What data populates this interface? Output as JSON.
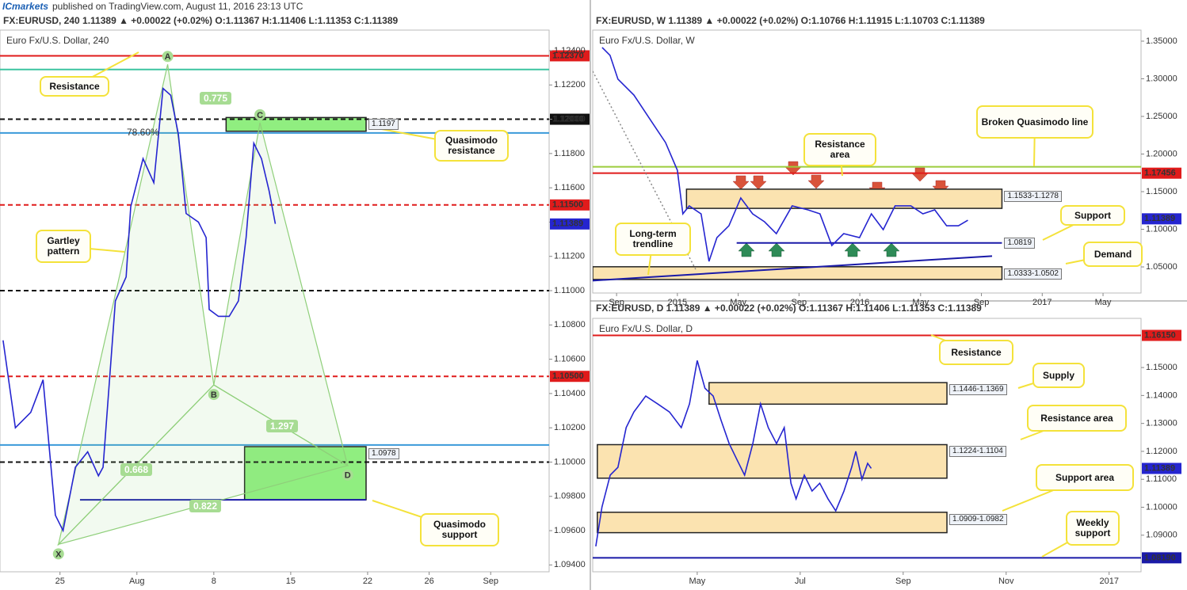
{
  "header": {
    "brand": "ICmarkets",
    "published": "published on TradingView.com, August 11, 2016 23:13 UTC"
  },
  "chart_data": [
    {
      "type": "line",
      "title": "FX:EURUSD, 240  1.11389 ▲ +0.00022 (+0.02%)  O:1.11367  H:1.11406  L:1.11353  C:1.11389",
      "subtitle": "Euro Fx/U.S. Dollar, 240",
      "x": [
        -3.7,
        -2.9,
        -1.9,
        -1.1,
        -0.3,
        0.2,
        1.0,
        1.8,
        2.5,
        2.8,
        3.6,
        4.3,
        4.6,
        5.4,
        6.1,
        6.7,
        7.2,
        7.7,
        8.2,
        9.0,
        9.5,
        9.7,
        10.3,
        11.0,
        11.6,
        12.1,
        12.6,
        13.1,
        13.6,
        14.0
      ],
      "values": [
        1.1071,
        1.102,
        1.1029,
        1.1048,
        1.0969,
        1.096,
        1.0997,
        1.1006,
        1.0992,
        1.0997,
        1.1094,
        1.1108,
        1.1149,
        1.1177,
        1.1163,
        1.1218,
        1.1214,
        1.1191,
        1.1145,
        1.114,
        1.1131,
        1.1089,
        1.1085,
        1.1085,
        1.1094,
        1.1131,
        1.1186,
        1.1177,
        1.1158,
        1.1139
      ],
      "color": "#2525d0",
      "last": 1.11389,
      "xlim": [
        -3.9,
        31.8
      ],
      "ylim": [
        1.0936,
        1.1252
      ],
      "xticks": [
        {
          "value": 0,
          "label": "25"
        },
        {
          "value": 5,
          "label": "Aug"
        },
        {
          "value": 10,
          "label": "8"
        },
        {
          "value": 15,
          "label": "15"
        },
        {
          "value": 20,
          "label": "22"
        },
        {
          "value": 24,
          "label": "26"
        },
        {
          "value": 28,
          "label": "Sep"
        }
      ],
      "yticks": [
        {
          "value": 1.094,
          "label": "1.09400"
        },
        {
          "value": 1.096,
          "label": "1.09600"
        },
        {
          "value": 1.098,
          "label": "1.09800"
        },
        {
          "value": 1.1,
          "label": "1.10000"
        },
        {
          "value": 1.102,
          "label": "1.10200"
        },
        {
          "value": 1.104,
          "label": "1.10400"
        },
        {
          "value": 1.106,
          "label": "1.10600"
        },
        {
          "value": 1.108,
          "label": "1.10800"
        },
        {
          "value": 1.11,
          "label": "1.11000"
        },
        {
          "value": 1.112,
          "label": "1.11200"
        },
        {
          "value": 1.114,
          "label": "1.11400"
        },
        {
          "value": 1.116,
          "label": "1.11600"
        },
        {
          "value": 1.118,
          "label": "1.11800"
        },
        {
          "value": 1.12,
          "label": "1.12000"
        },
        {
          "value": 1.122,
          "label": "1.12200"
        },
        {
          "value": 1.124,
          "label": "1.12400"
        }
      ],
      "levels": [
        {
          "value": 1.1237,
          "color": "#e01b1b",
          "style": "solid",
          "label": "1.12370"
        },
        {
          "value": 1.1229,
          "color": "#3cc4a0",
          "style": "solid"
        },
        {
          "value": 1.12,
          "color": "#111111",
          "style": "dashed",
          "label": "1.12000"
        },
        {
          "value": 1.1192,
          "color": "#3a9ad9",
          "style": "solid",
          "name": "78.60%"
        },
        {
          "value": 1.115,
          "color": "#e01b1b",
          "style": "dashed",
          "label": "1.11500"
        },
        {
          "value": 1.11,
          "color": "#111111",
          "style": "dashed"
        },
        {
          "value": 1.105,
          "color": "#e01b1b",
          "style": "dashed",
          "label": "1.10500"
        },
        {
          "value": 1.101,
          "color": "#3a9ad9",
          "style": "solid"
        },
        {
          "value": 1.1,
          "color": "#111111",
          "style": "dashed"
        },
        {
          "value": 1.0978,
          "color": "#1a1aa8",
          "style": "solid",
          "x_range": [
            1.3,
            19.9
          ]
        }
      ],
      "zones": [
        {
          "low": 1.1193,
          "high": 1.1201,
          "x_range": [
            10.8,
            19.9
          ],
          "color": "#90ee80",
          "tag": "1.1197"
        },
        {
          "low": 1.0978,
          "high": 1.1009,
          "x_range": [
            12,
            19.9
          ],
          "color": "#90ee80",
          "tag": "1.0978"
        }
      ],
      "pattern": [
        {
          "label": "X",
          "x": -0.1,
          "y": 1.0952
        },
        {
          "label": "A",
          "x": 7.0,
          "y": 1.1232
        },
        {
          "label": "B",
          "x": 10.0,
          "y": 1.1045
        },
        {
          "label": "C",
          "x": 13.0,
          "y": 1.1198
        },
        {
          "label": "D",
          "x": 18.7,
          "y": 1.0998
        }
      ],
      "ratios": [
        0.775,
        1.297,
        0.668,
        0.822
      ],
      "annotations": [
        "Resistance",
        "Quasimodo resistance",
        "Gartley pattern",
        "Quasimodo support"
      ]
    },
    {
      "type": "line",
      "title": "FX:EURUSD, W  1.11389 ▲ +0.00022 (+0.02%)  O:1.10766  H:1.11915  L:1.10703  C:1.11389",
      "subtitle": "Euro Fx/U.S. Dollar, W",
      "x": [
        7.05,
        7.57,
        8.09,
        9.14,
        10.18,
        11.22,
        12,
        12.36,
        12.78,
        13.56,
        14.08,
        14.6,
        15.39,
        16.17,
        16.95,
        17.73,
        18.51,
        19.55,
        20.59,
        21.38,
        22.16,
        22.94,
        23.98,
        24.76,
        25.54,
        26.32,
        27.36,
        28.15,
        28.93,
        29.71,
        30.49,
        31.11
      ],
      "values": [
        1.3416,
        1.3311,
        1.2995,
        1.2784,
        1.2468,
        1.2153,
        1.1784,
        1.1205,
        1.1311,
        1.1205,
        1.0574,
        1.0889,
        1.1047,
        1.1416,
        1.1205,
        1.11,
        1.0942,
        1.1311,
        1.1258,
        1.1205,
        1.0784,
        1.0942,
        1.0889,
        1.1205,
        1.0995,
        1.1311,
        1.1311,
        1.1205,
        1.1258,
        1.1047,
        1.1047,
        1.1121
      ],
      "color": "#2525d0",
      "last": 1.11389,
      "xlim": [
        6.43,
        42.5
      ],
      "ylim": [
        1.0153,
        1.3647
      ],
      "xticks": [
        {
          "value": 8,
          "label": "Sep"
        },
        {
          "value": 12,
          "label": "2015"
        },
        {
          "value": 16,
          "label": "May"
        },
        {
          "value": 20,
          "label": "Sep"
        },
        {
          "value": 24,
          "label": "2016"
        },
        {
          "value": 28,
          "label": "May"
        },
        {
          "value": 32,
          "label": "Sep"
        },
        {
          "value": 36,
          "label": "2017"
        },
        {
          "value": 40,
          "label": "May"
        }
      ],
      "yticks": [
        {
          "value": 1.05,
          "label": "1.05000"
        },
        {
          "value": 1.1,
          "label": "1.10000"
        },
        {
          "value": 1.15,
          "label": "1.15000"
        },
        {
          "value": 1.2,
          "label": "1.20000"
        },
        {
          "value": 1.25,
          "label": "1.25000"
        },
        {
          "value": 1.3,
          "label": "1.30000"
        },
        {
          "value": 1.35,
          "label": "1.35000"
        }
      ],
      "levels": [
        {
          "value": 1.183,
          "color": "#9ccc3c",
          "style": "solid"
        },
        {
          "value": 1.17456,
          "color": "#e01b1b",
          "style": "solid",
          "label": "1.17456"
        },
        {
          "value": 1.0819,
          "color": "#1a1aa8",
          "style": "solid",
          "x_range": [
            15.9,
            33.35
          ],
          "tag": "1.0819"
        }
      ],
      "zones": [
        {
          "low": 1.1278,
          "high": 1.1533,
          "x_range": [
            12.6,
            33.35
          ],
          "color": "#fbe3b0",
          "tag": "1.1533-1.1278"
        },
        {
          "low": 1.0333,
          "high": 1.0502,
          "x_range": [
            6.43,
            33.35
          ],
          "color": "#fbe3b0",
          "tag": "1.0333-1.0502"
        }
      ],
      "lines": [
        {
          "from": [
            6.43,
            1.0318
          ],
          "to": [
            32.7,
            1.0644
          ],
          "color": "#1a1aa8",
          "style": "solid"
        },
        {
          "from": [
            6.43,
            1.31
          ],
          "to": [
            13.2,
            1.0468
          ],
          "color": "#888888",
          "style": "dotted"
        }
      ],
      "annotations": [
        "Resistance area",
        "Broken Quasimodo line",
        "Support",
        "Long-term trendline",
        "Demand"
      ]
    },
    {
      "type": "line",
      "title": "FX:EURUSD, D  1.11389 ▲ +0.00022 (+0.02%)  O:1.11367  H:1.11406  L:1.11353  C:1.11389",
      "subtitle": "Euro Fx/U.S. Dollar, D",
      "x": [
        2.03,
        2.15,
        2.31,
        2.46,
        2.62,
        2.77,
        3.0,
        3.23,
        3.46,
        3.69,
        3.85,
        4.0,
        4.15,
        4.31,
        4.46,
        4.62,
        4.77,
        4.92,
        5.08,
        5.23,
        5.38,
        5.54,
        5.69,
        5.82,
        5.92,
        6.08,
        6.23,
        6.38,
        6.54,
        6.69,
        6.85,
        7.0,
        7.08,
        7.2,
        7.31,
        7.38
      ],
      "values": [
        1.086,
        1.1001,
        1.1115,
        1.1143,
        1.1285,
        1.1341,
        1.1398,
        1.137,
        1.1341,
        1.1285,
        1.137,
        1.1525,
        1.1426,
        1.1398,
        1.1313,
        1.1228,
        1.1171,
        1.1115,
        1.1228,
        1.137,
        1.1285,
        1.1228,
        1.1285,
        1.1086,
        1.103,
        1.1115,
        1.1058,
        1.1086,
        1.103,
        1.0987,
        1.1058,
        1.1143,
        1.12,
        1.11,
        1.1157,
        1.1139
      ],
      "color": "#2525d0",
      "last": 1.11389,
      "xlim": [
        1.97,
        12.62
      ],
      "ylim": [
        1.0769,
        1.1676
      ],
      "xticks": [
        {
          "value": 4,
          "label": "May"
        },
        {
          "value": 6,
          "label": "Jul"
        },
        {
          "value": 8,
          "label": "Sep"
        },
        {
          "value": 10,
          "label": "Nov"
        },
        {
          "value": 12,
          "label": "2017"
        }
      ],
      "yticks": [
        {
          "value": 1.09,
          "label": "1.09000"
        },
        {
          "value": 1.1,
          "label": "1.10000"
        },
        {
          "value": 1.11,
          "label": "1.11000"
        },
        {
          "value": 1.12,
          "label": "1.12000"
        },
        {
          "value": 1.13,
          "label": "1.13000"
        },
        {
          "value": 1.14,
          "label": "1.14000"
        },
        {
          "value": 1.15,
          "label": "1.15000"
        }
      ],
      "levels": [
        {
          "value": 1.1615,
          "color": "#e01b1b",
          "style": "solid",
          "label": "1.16150"
        },
        {
          "value": 1.0819,
          "color": "#1a1aa8",
          "style": "solid",
          "label": "1.08190"
        }
      ],
      "zones": [
        {
          "low": 1.1369,
          "high": 1.1446,
          "x_range": [
            4.23,
            8.85
          ],
          "color": "#fbe3b0",
          "tag": "1.1446-1.1369"
        },
        {
          "low": 1.1104,
          "high": 1.1224,
          "x_range": [
            2.06,
            8.85
          ],
          "color": "#fbe3b0",
          "tag": "1.1224-1.1104"
        },
        {
          "low": 1.0909,
          "high": 1.0982,
          "x_range": [
            2.06,
            8.85
          ],
          "color": "#fbe3b0",
          "tag": "1.0909-1.0982"
        }
      ],
      "annotations": [
        "Resistance",
        "Supply",
        "Resistance area",
        "Support area",
        "Weekly support"
      ]
    }
  ]
}
